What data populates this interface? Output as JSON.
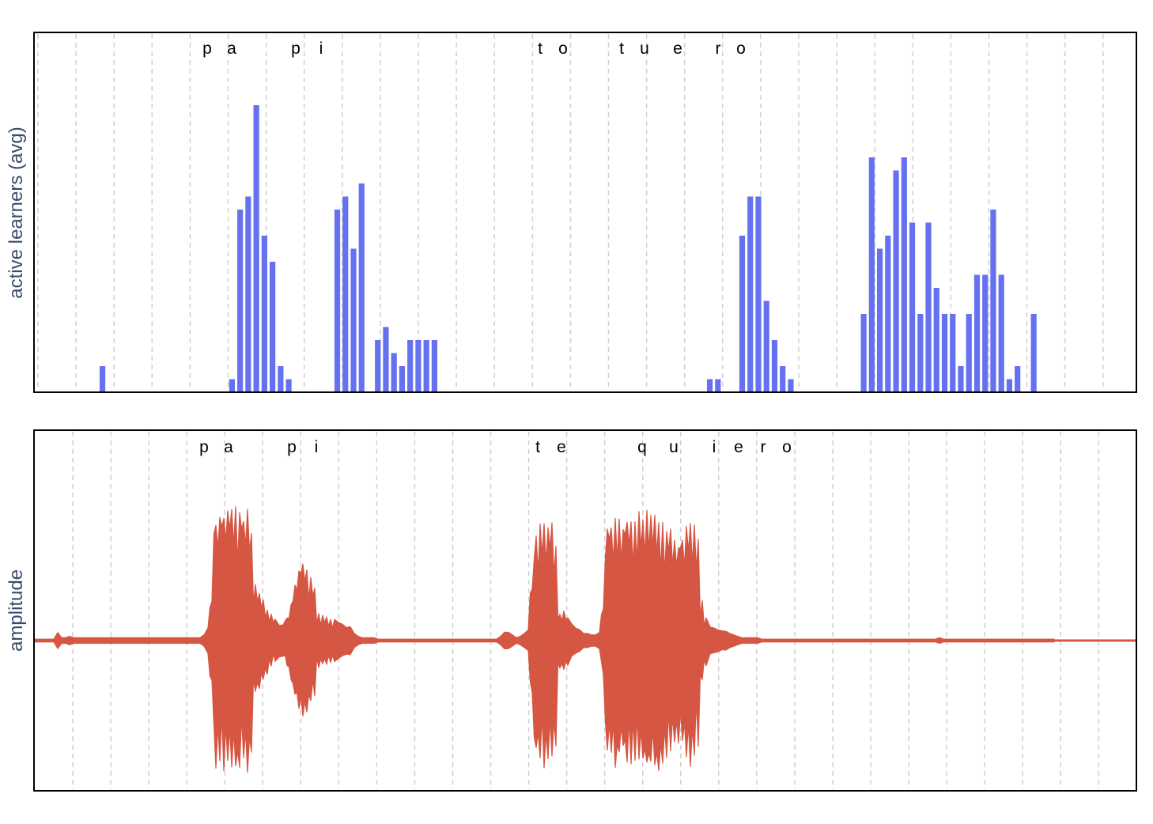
{
  "chart_data": [
    {
      "type": "bar",
      "ylabel": "active learners (avg)",
      "phonemes": [
        "p",
        "a",
        "p",
        "i",
        "t",
        "o",
        "t",
        "u",
        "e",
        "r",
        "o"
      ],
      "ylim": [
        0,
        22
      ],
      "color": "#6571ef",
      "grid_x": true,
      "grid_y": false,
      "bins": 137,
      "values": [
        0,
        0,
        0,
        0,
        2,
        0,
        0,
        0,
        0,
        0,
        0,
        0,
        0,
        0,
        0,
        0,
        0,
        0,
        0,
        0,
        1,
        14,
        15,
        22,
        12,
        10,
        2,
        1,
        0,
        0,
        0,
        0,
        0,
        14,
        15,
        11,
        16,
        0,
        4,
        5,
        3,
        2,
        4,
        4,
        4,
        4,
        0,
        0,
        0,
        0,
        0,
        0,
        0,
        0,
        0,
        0,
        0,
        0,
        0,
        0,
        0,
        0,
        0,
        0,
        0,
        0,
        0,
        0,
        0,
        0,
        0,
        0,
        0,
        0,
        0,
        0,
        0,
        0,
        0,
        1,
        1,
        0,
        0,
        12,
        15,
        15,
        7,
        4,
        2,
        1,
        0,
        0,
        0,
        0,
        0,
        0,
        0,
        0,
        6,
        18,
        11,
        12,
        17,
        18,
        13,
        6,
        13,
        8,
        6,
        6,
        2,
        6,
        9,
        9,
        14,
        9,
        1,
        2,
        0,
        6,
        0,
        0,
        0,
        0,
        0,
        0,
        0,
        0,
        0,
        0,
        0,
        0,
        0,
        0,
        0,
        0,
        0
      ]
    },
    {
      "type": "area",
      "ylabel": "amplitude",
      "phonemes": [
        "p",
        "a",
        "p",
        "i",
        "t",
        "e",
        "q",
        "u",
        "i",
        "e",
        "r",
        "o"
      ],
      "ylim": [
        -1,
        1
      ],
      "color": "#d55642",
      "grid_x": true,
      "grid_y": false,
      "x_step": 5,
      "envelope": [
        0.01,
        0.01,
        0.01,
        0.01,
        0.01,
        0.01,
        0.06,
        0.02,
        0.02,
        0.03,
        0.02,
        0.02,
        0.02,
        0.02,
        0.02,
        0.02,
        0.02,
        0.02,
        0.02,
        0.02,
        0.02,
        0.02,
        0.02,
        0.02,
        0.02,
        0.02,
        0.02,
        0.02,
        0.02,
        0.02,
        0.02,
        0.02,
        0.02,
        0.02,
        0.02,
        0.02,
        0.02,
        0.02,
        0.02,
        0.02,
        0.02,
        0.02,
        0.02,
        0.04,
        0.1,
        0.3,
        0.92,
        0.92,
        0.95,
        0.96,
        0.99,
        0.99,
        0.96,
        0.94,
        0.94,
        0.85,
        0.4,
        0.36,
        0.3,
        0.24,
        0.2,
        0.16,
        0.12,
        0.12,
        0.18,
        0.28,
        0.42,
        0.52,
        0.56,
        0.56,
        0.48,
        0.42,
        0.2,
        0.18,
        0.18,
        0.16,
        0.16,
        0.14,
        0.12,
        0.1,
        0.1,
        0.05,
        0.03,
        0.02,
        0.02,
        0.02,
        0.02,
        0.01,
        0.01,
        0.01,
        0.01,
        0.01,
        0.01,
        0.01,
        0.01,
        0.01,
        0.01,
        0.01,
        0.01,
        0.01,
        0.01,
        0.01,
        0.01,
        0.01,
        0.01,
        0.01,
        0.01,
        0.01,
        0.01,
        0.01,
        0.01,
        0.01,
        0.01,
        0.01,
        0.01,
        0.01,
        0.01,
        0.01,
        0.03,
        0.06,
        0.06,
        0.04,
        0.02,
        0.03,
        0.05,
        0.08,
        0.4,
        0.82,
        0.86,
        0.91,
        0.91,
        0.88,
        0.75,
        0.2,
        0.22,
        0.18,
        0.12,
        0.1,
        0.08,
        0.05,
        0.05,
        0.04,
        0.04,
        0.06,
        0.25,
        0.88,
        0.9,
        0.92,
        0.88,
        0.84,
        0.92,
        0.95,
        0.93,
        0.94,
        0.95,
        0.97,
        0.96,
        0.95,
        0.95,
        0.9,
        0.84,
        0.82,
        0.78,
        0.74,
        0.8,
        0.9,
        0.94,
        0.88,
        0.76,
        0.3,
        0.18,
        0.1,
        0.09,
        0.08,
        0.07,
        0.07,
        0.05,
        0.04,
        0.03,
        0.02,
        0.02,
        0.02,
        0.02,
        0.02,
        0.01,
        0.01,
        0.01,
        0.01,
        0.01,
        0.01,
        0.01,
        0.01,
        0.01,
        0.01,
        0.01,
        0.01,
        0.01,
        0.01,
        0.01,
        0.01,
        0.01,
        0.01,
        0.01,
        0.01,
        0.01,
        0.01,
        0.01,
        0.01,
        0.01,
        0.01,
        0.01,
        0.01,
        0.01,
        0.01,
        0.01,
        0.01,
        0.01,
        0.01,
        0.01,
        0.01,
        0.01,
        0.01,
        0.01,
        0.01,
        0.01,
        0.01,
        0.01,
        0.01,
        0.01,
        0.02,
        0.01,
        0.01,
        0.01,
        0.01,
        0.01,
        0.01,
        0.01,
        0.01,
        0.01,
        0.01,
        0.01,
        0.01,
        0.01,
        0.01,
        0.01,
        0.01,
        0.01,
        0.01,
        0.01,
        0.01,
        0.01,
        0.01,
        0.01,
        0.01,
        0.01,
        0.01,
        0.01,
        0.01,
        0.01
      ]
    }
  ]
}
